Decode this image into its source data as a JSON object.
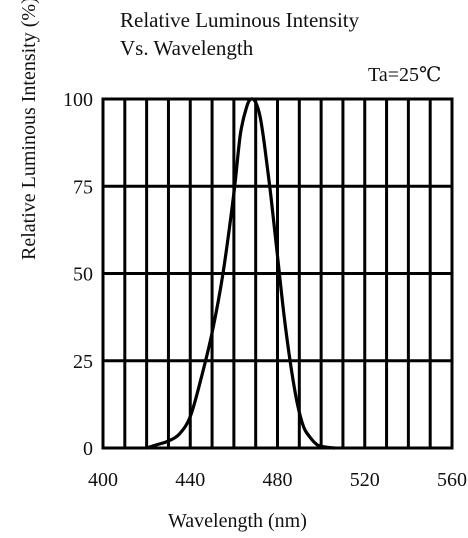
{
  "chart_data": {
    "type": "line",
    "title": [
      "Relative Luminous Intensity",
      "Vs. Wavelength"
    ],
    "condition": "Ta=25℃",
    "xlabel": "Wavelength (nm)",
    "ylabel": "Relative  Luminous  Intensity (%)",
    "xlim": [
      400,
      560
    ],
    "ylim": [
      0,
      100
    ],
    "x_ticks": [
      400,
      440,
      480,
      520,
      560
    ],
    "y_ticks": [
      0,
      25,
      50,
      75,
      100
    ],
    "x_grid_step": 10,
    "y_grid_step": 25,
    "grid": true,
    "series": [
      {
        "x": [
          420,
          425,
          430,
          435,
          440,
          445,
          450,
          455,
          460,
          463,
          466,
          468,
          470,
          472,
          474,
          477,
          480,
          483,
          486,
          489,
          492,
          495,
          498,
          500,
          503,
          506
        ],
        "y": [
          0,
          1,
          2,
          4,
          9,
          20,
          33,
          50,
          73,
          90,
          98,
          100,
          99,
          95,
          87,
          72,
          55,
          38,
          24,
          13,
          6,
          3,
          1,
          0.5,
          0.2,
          0
        ],
        "color": "#000000"
      }
    ]
  }
}
